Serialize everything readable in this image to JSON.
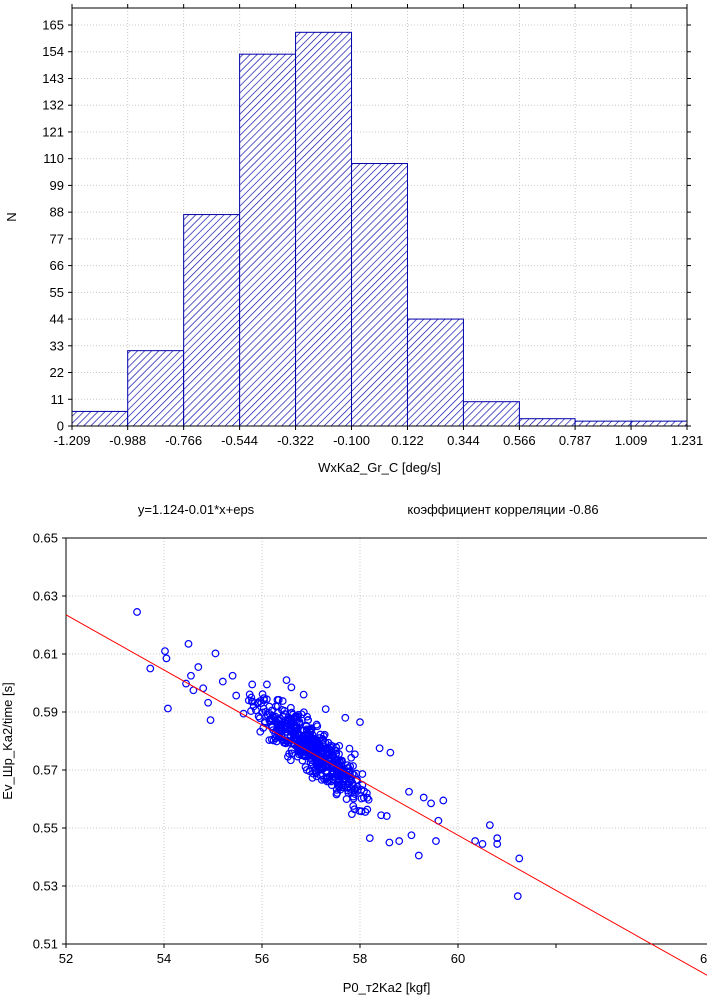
{
  "chart_data": [
    {
      "type": "bar",
      "subtype": "histogram",
      "title": "",
      "xlabel": "WxKa2_Gr_C [deg/s]",
      "ylabel": "N",
      "x_ticks": [
        "-1.209",
        "-0.988",
        "-0.766",
        "-0.544",
        "-0.322",
        "-0.100",
        "0.122",
        "0.344",
        "0.566",
        "0.787",
        "1.009",
        "1.231"
      ],
      "y_ticks": [
        "0",
        "11",
        "22",
        "33",
        "44",
        "55",
        "66",
        "77",
        "88",
        "99",
        "110",
        "121",
        "132",
        "143",
        "154",
        "165"
      ],
      "bin_edges": [
        -1.209,
        -0.988,
        -0.766,
        -0.544,
        -0.322,
        -0.1,
        0.122,
        0.344,
        0.566,
        0.787,
        1.009,
        1.231
      ],
      "values": [
        6,
        31,
        87,
        153,
        162,
        108,
        44,
        10,
        3,
        2,
        2
      ],
      "ylim": [
        0,
        172
      ],
      "bar_fill": "hatched",
      "bar_color": "#0000aa",
      "grid": true
    },
    {
      "type": "scatter",
      "title_left": "y=1.124-0.01*x+eps",
      "title_right": "коэффициент корреляции -0.86",
      "xlabel": "P0_т2Ka2 [kgf]",
      "ylabel": "Ev_Шр_Ka2/time [s]",
      "x_ticks": [
        "52",
        "54",
        "56",
        "58",
        "60",
        "6"
      ],
      "y_ticks": [
        "0.51",
        "0.53",
        "0.55",
        "0.57",
        "0.59",
        "0.61",
        "0.63",
        "0.65"
      ],
      "xlim": [
        52,
        62
      ],
      "ylim": [
        0.51,
        0.65
      ],
      "point_color": "#0000ff",
      "line_color": "#ff0000",
      "regression": {
        "intercept": 1.124,
        "slope": -0.01
      },
      "grid": true,
      "sample_points": [
        [
          53.45,
          0.6245
        ],
        [
          53.72,
          0.605
        ],
        [
          54.02,
          0.611
        ],
        [
          54.05,
          0.6085
        ],
        [
          54.08,
          0.5912
        ],
        [
          54.45,
          0.5998
        ],
        [
          54.5,
          0.6135
        ],
        [
          54.55,
          0.6025
        ],
        [
          54.6,
          0.5975
        ],
        [
          54.7,
          0.6055
        ],
        [
          54.8,
          0.5982
        ],
        [
          54.9,
          0.5932
        ],
        [
          54.95,
          0.5872
        ],
        [
          55.05,
          0.6102
        ],
        [
          55.2,
          0.6005
        ],
        [
          55.4,
          0.6025
        ],
        [
          55.8,
          0.5995
        ],
        [
          56.1,
          0.5995
        ],
        [
          56.2,
          0.5905
        ],
        [
          56.5,
          0.601
        ],
        [
          56.6,
          0.5985
        ],
        [
          56.85,
          0.596
        ],
        [
          57.3,
          0.591
        ],
        [
          57.7,
          0.588
        ],
        [
          58.0,
          0.5865
        ],
        [
          58.4,
          0.5775
        ],
        [
          58.62,
          0.576
        ],
        [
          59.0,
          0.5625
        ],
        [
          59.3,
          0.5605
        ],
        [
          59.45,
          0.5585
        ],
        [
          59.7,
          0.5595
        ],
        [
          59.6,
          0.5525
        ],
        [
          59.55,
          0.5455
        ],
        [
          60.35,
          0.5455
        ],
        [
          60.5,
          0.5445
        ],
        [
          60.65,
          0.551
        ],
        [
          60.8,
          0.5465
        ],
        [
          60.8,
          0.5445
        ],
        [
          61.25,
          0.5395
        ],
        [
          61.22,
          0.5265
        ],
        [
          58.8,
          0.5455
        ],
        [
          59.05,
          0.5475
        ],
        [
          59.2,
          0.5405
        ],
        [
          58.6,
          0.545
        ],
        [
          58.2,
          0.5465
        ]
      ]
    }
  ]
}
